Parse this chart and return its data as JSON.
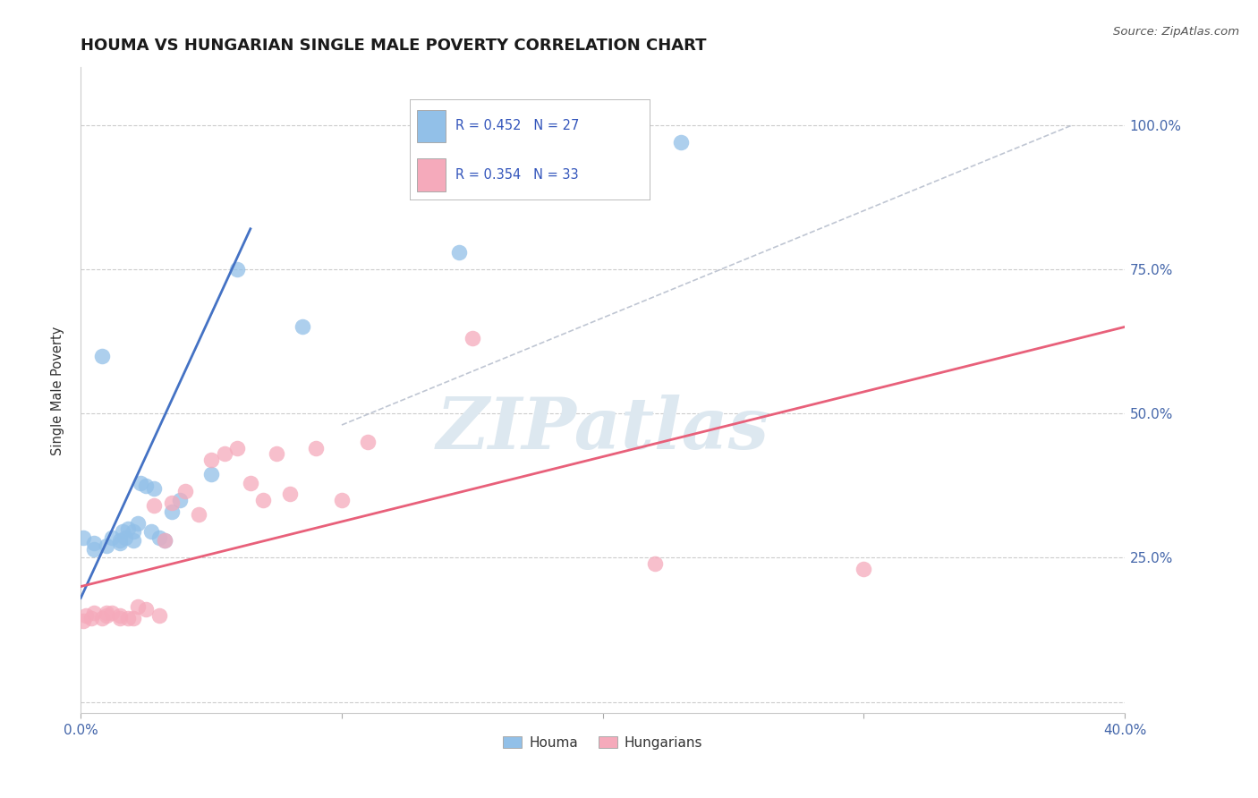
{
  "title": "HOUMA VS HUNGARIAN SINGLE MALE POVERTY CORRELATION CHART",
  "source": "Source: ZipAtlas.com",
  "ylabel": "Single Male Poverty",
  "xlim": [
    0.0,
    0.4
  ],
  "ylim": [
    -0.02,
    1.1
  ],
  "xtick_positions": [
    0.0,
    0.1,
    0.2,
    0.3,
    0.4
  ],
  "xtick_labels": [
    "0.0%",
    "",
    "",
    "",
    "40.0%"
  ],
  "ytick_labels": [
    "",
    "25.0%",
    "50.0%",
    "75.0%",
    "100.0%"
  ],
  "ytick_positions": [
    0.0,
    0.25,
    0.5,
    0.75,
    1.0
  ],
  "houma_R": 0.452,
  "houma_N": 27,
  "hungarian_R": 0.354,
  "hungarian_N": 33,
  "houma_color": "#92C0E8",
  "hungarian_color": "#F5AABB",
  "houma_line_color": "#4472C4",
  "hungarian_line_color": "#E8607A",
  "diagonal_color": "#B0B8C8",
  "background_color": "#FFFFFF",
  "grid_color": "#CCCCCC",
  "houma_x": [
    0.001,
    0.005,
    0.005,
    0.008,
    0.01,
    0.012,
    0.015,
    0.015,
    0.016,
    0.017,
    0.018,
    0.02,
    0.02,
    0.022,
    0.023,
    0.025,
    0.027,
    0.028,
    0.03,
    0.032,
    0.035,
    0.038,
    0.05,
    0.06,
    0.085,
    0.145,
    0.23
  ],
  "houma_y": [
    0.285,
    0.265,
    0.275,
    0.6,
    0.27,
    0.285,
    0.275,
    0.28,
    0.295,
    0.285,
    0.3,
    0.28,
    0.295,
    0.31,
    0.38,
    0.375,
    0.295,
    0.37,
    0.285,
    0.28,
    0.33,
    0.35,
    0.395,
    0.75,
    0.65,
    0.78,
    0.97
  ],
  "hungarian_x": [
    0.001,
    0.002,
    0.004,
    0.005,
    0.008,
    0.01,
    0.01,
    0.012,
    0.015,
    0.015,
    0.018,
    0.02,
    0.022,
    0.025,
    0.028,
    0.03,
    0.032,
    0.035,
    0.04,
    0.045,
    0.05,
    0.055,
    0.06,
    0.065,
    0.07,
    0.075,
    0.08,
    0.09,
    0.1,
    0.11,
    0.15,
    0.22,
    0.3
  ],
  "hungarian_y": [
    0.14,
    0.15,
    0.145,
    0.155,
    0.145,
    0.15,
    0.155,
    0.155,
    0.145,
    0.15,
    0.145,
    0.145,
    0.165,
    0.16,
    0.34,
    0.15,
    0.28,
    0.345,
    0.365,
    0.325,
    0.42,
    0.43,
    0.44,
    0.38,
    0.35,
    0.43,
    0.36,
    0.44,
    0.35,
    0.45,
    0.63,
    0.24,
    0.23
  ],
  "watermark_text": "ZIPatlas",
  "watermark_color": "#DDE8F0",
  "houma_line_x": [
    0.0,
    0.065
  ],
  "houma_line_y": [
    0.18,
    0.82
  ],
  "hungarian_line_x": [
    0.0,
    0.4
  ],
  "hungarian_line_y": [
    0.2,
    0.65
  ],
  "diag_line_x": [
    0.1,
    0.38
  ],
  "diag_line_y": [
    0.48,
    1.0
  ]
}
